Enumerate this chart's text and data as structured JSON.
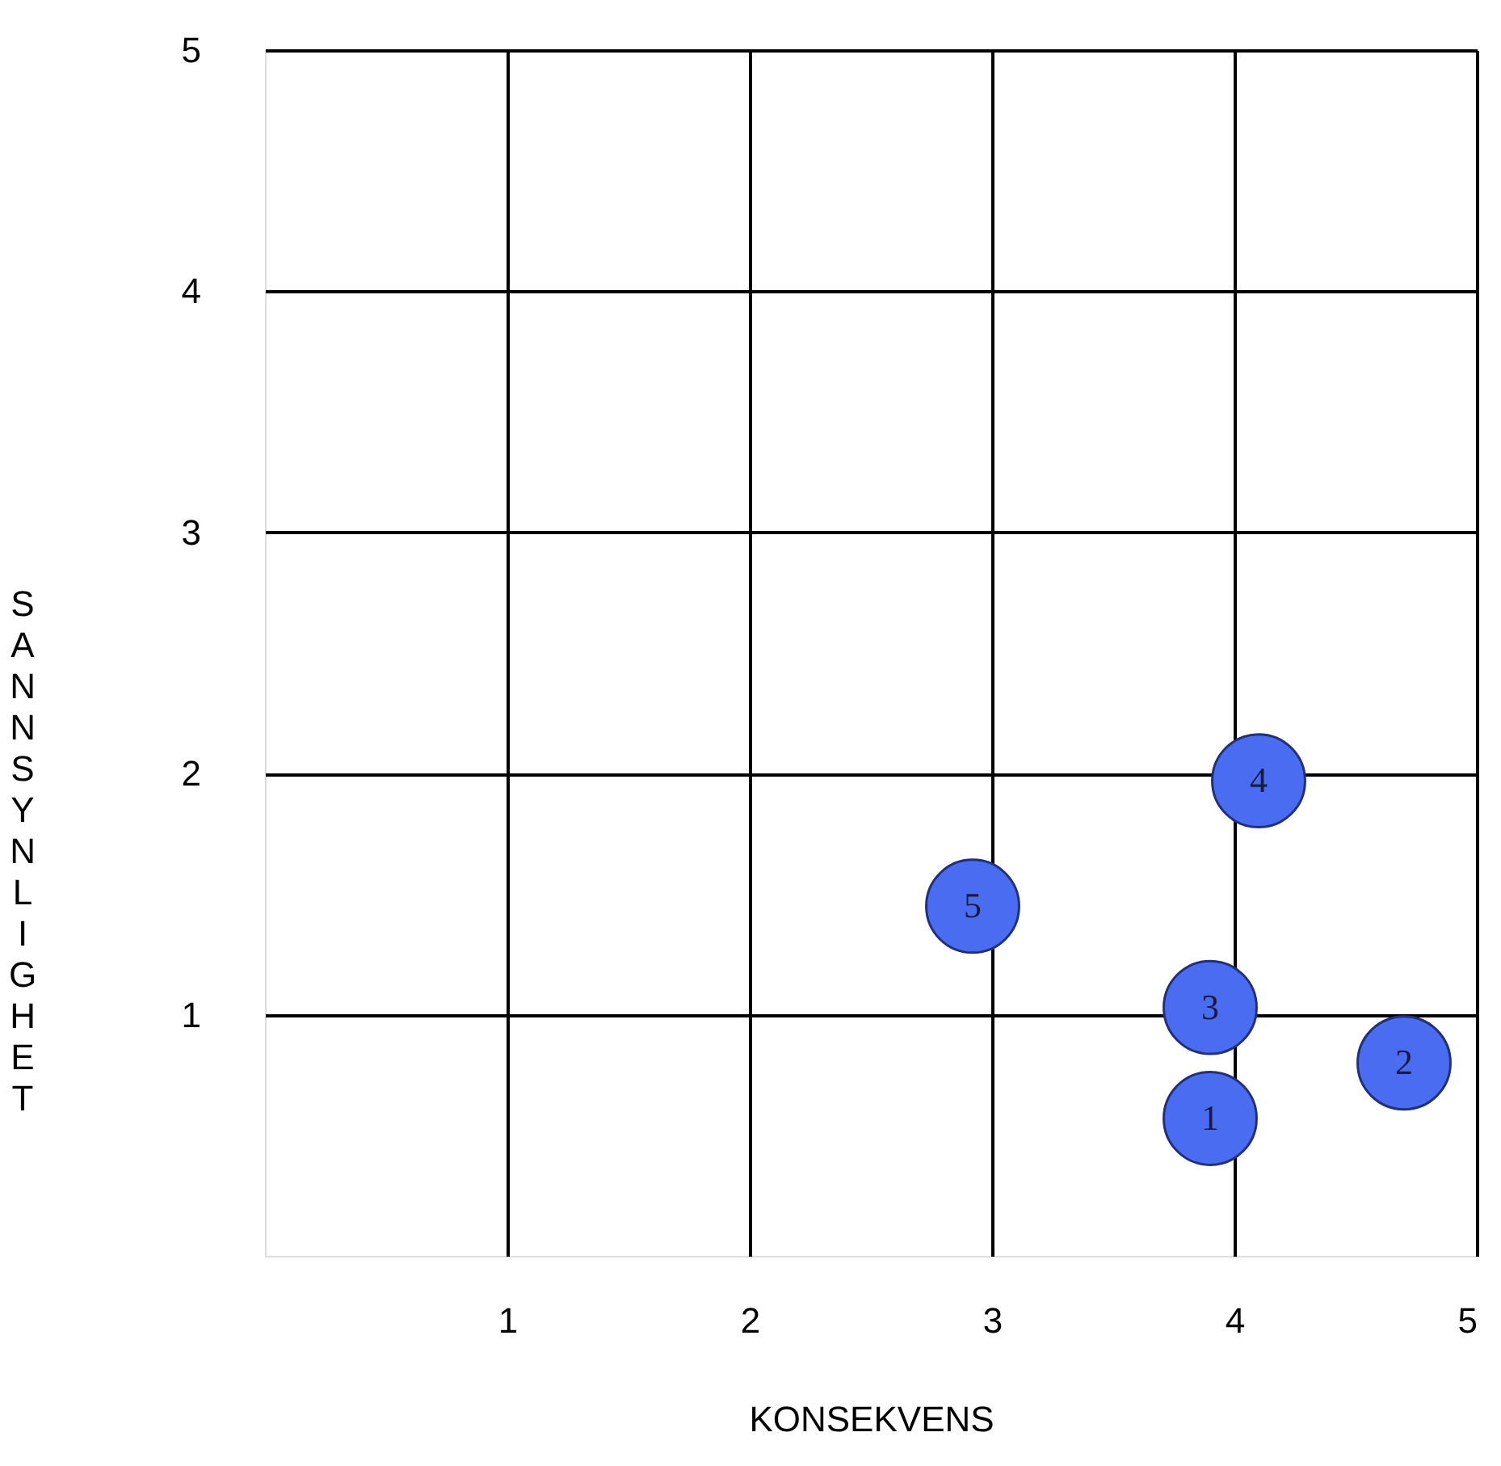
{
  "chart_data": {
    "type": "scatter",
    "xlabel": "KONSEKVENS",
    "ylabel": "SANNSYNLIGHET",
    "xlim": [
      0,
      5
    ],
    "ylim": [
      0,
      5
    ],
    "xticks": [
      1,
      2,
      3,
      4,
      5
    ],
    "yticks": [
      1,
      2,
      3,
      4,
      5
    ],
    "grid": true,
    "marker": "circle",
    "series": [
      {
        "color": "#4a6cf0",
        "x": [
          3.9,
          4.7,
          3.9,
          4.1,
          2.92
        ],
        "values": [
          0.57,
          0.8,
          1.03,
          1.97,
          1.45
        ]
      }
    ],
    "annotations": [
      {
        "text": "1",
        "x": 3.9,
        "y": 0.57
      },
      {
        "text": "2",
        "x": 4.7,
        "y": 0.8
      },
      {
        "text": "3",
        "x": 3.9,
        "y": 1.03
      },
      {
        "text": "4",
        "x": 4.1,
        "y": 1.97
      },
      {
        "text": "5",
        "x": 2.92,
        "y": 1.45
      }
    ]
  }
}
